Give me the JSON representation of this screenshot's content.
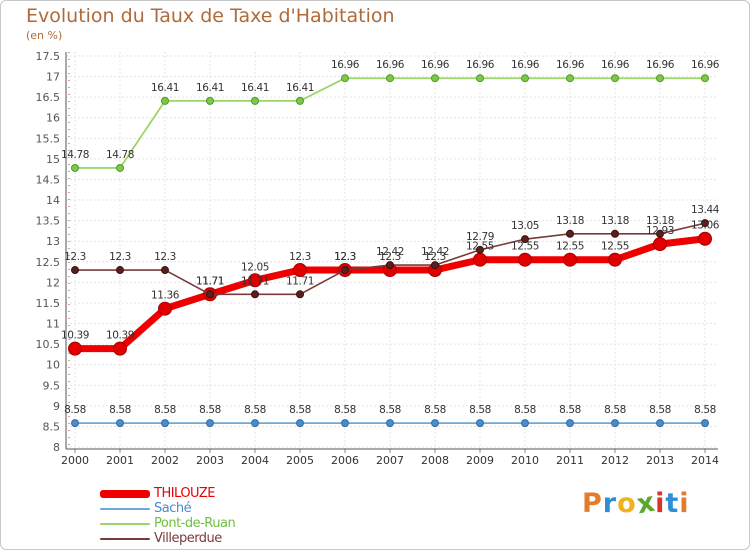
{
  "title": "Evolution du Taux de Taxe d'Habitation",
  "unit": "(en %)",
  "logo": {
    "text": "Proxiti",
    "letters": [
      "P",
      "r",
      "o",
      "x",
      "i",
      "t",
      "i"
    ],
    "colors": [
      "#e57c2b",
      "#2d8fd6",
      "#f0b21a",
      "#5aa830",
      "#d9342b",
      "#2d8fd6",
      "#e57c2b"
    ]
  },
  "chart_data": {
    "type": "line",
    "title": "Evolution du Taux de Taxe d'Habitation",
    "ylabel": "(en %)",
    "xlabel": "",
    "x": [
      2000,
      2001,
      2002,
      2003,
      2004,
      2005,
      2006,
      2007,
      2008,
      2009,
      2010,
      2011,
      2012,
      2013,
      2014
    ],
    "ylim": [
      8,
      17.5
    ],
    "yticks": [
      "8",
      "8.5",
      "9",
      "9.5",
      "10",
      "10.5",
      "11",
      "11.5",
      "12",
      "12.5",
      "13",
      "13.5",
      "14",
      "14.5",
      "15",
      "15.5",
      "16",
      "16.5",
      "17",
      "17.5"
    ],
    "grid": true,
    "legend_position": "bottom-left",
    "series": [
      {
        "name": "THILOUZE",
        "color": "#ee0000",
        "values": [
          10.39,
          10.39,
          11.36,
          11.71,
          12.05,
          12.3,
          12.3,
          12.3,
          12.3,
          12.55,
          12.55,
          12.55,
          12.55,
          12.93,
          13.06
        ],
        "labels": [
          "10.39",
          "10.39",
          "11.36",
          "11.71",
          "12.05",
          "12.3",
          "12.3",
          "12.3",
          "12.3",
          "12.55",
          "12.55",
          "12.55",
          "12.55",
          "12.93",
          "13.06"
        ]
      },
      {
        "name": "Saché",
        "color": "#6fa8d8",
        "values": [
          8.58,
          8.58,
          8.58,
          8.58,
          8.58,
          8.58,
          8.58,
          8.58,
          8.58,
          8.58,
          8.58,
          8.58,
          8.58,
          8.58,
          8.58
        ],
        "labels": [
          "8.58",
          "8.58",
          "8.58",
          "8.58",
          "8.58",
          "8.58",
          "8.58",
          "8.58",
          "8.58",
          "8.58",
          "8.58",
          "8.58",
          "8.58",
          "8.58",
          "8.58"
        ]
      },
      {
        "name": "Pont-de-Ruan",
        "color": "#9ad66a",
        "values": [
          14.78,
          14.78,
          16.41,
          16.41,
          16.41,
          16.41,
          16.96,
          16.96,
          16.96,
          16.96,
          16.96,
          16.96,
          16.96,
          16.96,
          16.96
        ],
        "labels": [
          "14.78",
          "14.78",
          "16.41",
          "16.41",
          "16.41",
          "16.41",
          "16.96",
          "16.96",
          "16.96",
          "16.96",
          "16.96",
          "16.96",
          "16.96",
          "16.96",
          "16.96"
        ]
      },
      {
        "name": "Villeperdue",
        "color": "#7a3a3a",
        "values": [
          12.3,
          12.3,
          12.3,
          11.71,
          11.71,
          11.71,
          12.3,
          12.42,
          12.42,
          12.79,
          13.05,
          13.18,
          13.18,
          13.18,
          13.44
        ],
        "labels": [
          "12.3",
          "12.3",
          "12.3",
          "11.71",
          "11.71",
          "11.71",
          "12.3",
          "12.42",
          "12.42",
          "12.79",
          "13.05",
          "13.18",
          "13.18",
          "13.18",
          "13.44"
        ]
      }
    ]
  }
}
